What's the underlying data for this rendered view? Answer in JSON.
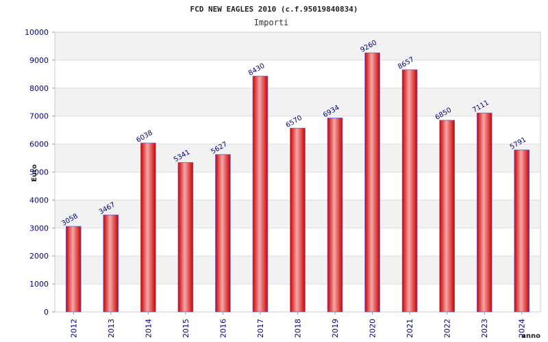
{
  "chart_data": {
    "type": "bar",
    "title": "FCD NEW EAGLES 2010 (c.f.95019840834)",
    "subtitle": "Importi",
    "xlabel": "anno",
    "ylabel": "Euro",
    "categories": [
      "2012",
      "2013",
      "2014",
      "2015",
      "2016",
      "2017",
      "2018",
      "2019",
      "2020",
      "2021",
      "2022",
      "2023",
      "2024"
    ],
    "values": [
      3058,
      3467,
      6038,
      5341,
      5627,
      8430,
      6570,
      6934,
      9260,
      8657,
      6850,
      7111,
      5791
    ],
    "data_labels": [
      "3058",
      "3467",
      "6038",
      "5341",
      "5627",
      "8430",
      "6570",
      "6934",
      "9260",
      "8657",
      "6850",
      "7111",
      "5791"
    ],
    "ylim": [
      0,
      10000
    ],
    "yticks": [
      "0",
      "1000",
      "2000",
      "3000",
      "4000",
      "5000",
      "6000",
      "7000",
      "8000",
      "9000",
      "10000"
    ],
    "grid": true,
    "legend": "none",
    "colors": {
      "bar_edge": "#cc0000",
      "bar_center": "#f4a8a8",
      "bar_outline": "#6666cc",
      "band": "#f2f2f2",
      "text": "#000080"
    }
  }
}
